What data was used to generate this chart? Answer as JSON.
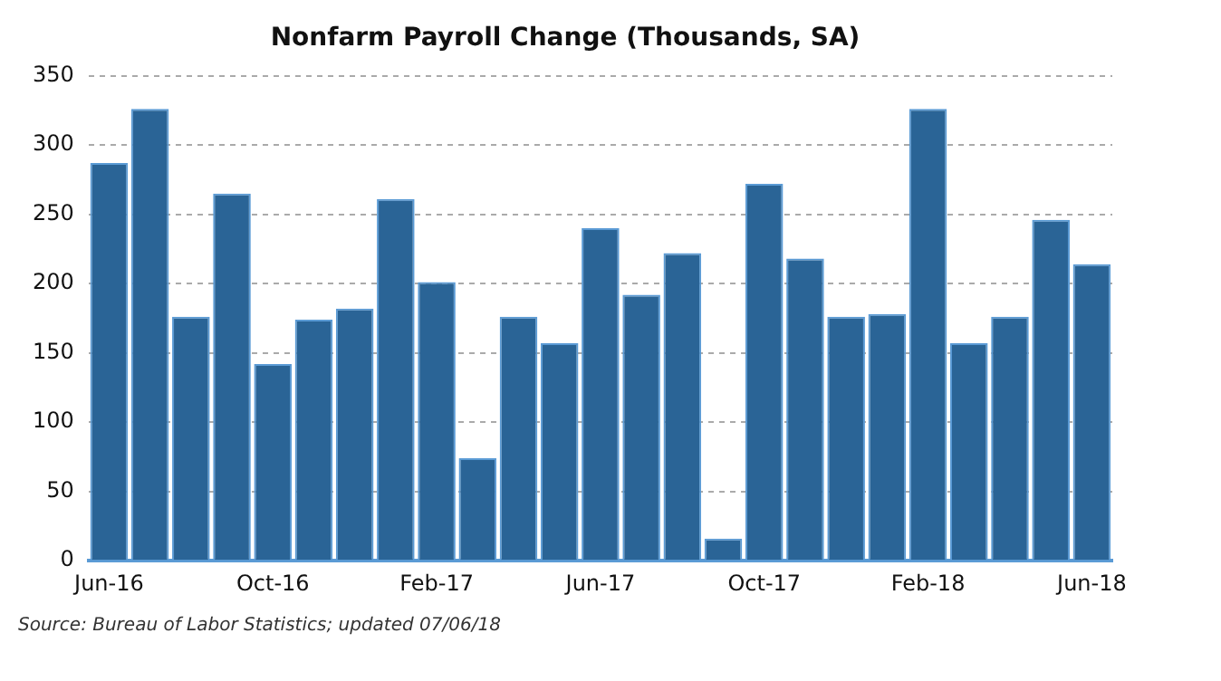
{
  "chart_data": {
    "type": "bar",
    "title": "Nonfarm Payroll Change (Thousands, SA)",
    "categories": [
      "Jun-16",
      null,
      null,
      null,
      "Oct-16",
      null,
      null,
      null,
      "Feb-17",
      null,
      null,
      null,
      "Jun-17",
      null,
      null,
      null,
      "Oct-17",
      null,
      null,
      null,
      "Feb-18",
      null,
      null,
      null,
      "Jun-18"
    ],
    "values": [
      287,
      326,
      176,
      265,
      142,
      174,
      182,
      261,
      201,
      74,
      176,
      157,
      240,
      192,
      222,
      16,
      272,
      218,
      176,
      178,
      326,
      157,
      176,
      246,
      214
    ],
    "color": "#2a6496",
    "ylim": [
      0,
      350
    ],
    "yticks": [
      0,
      50,
      100,
      150,
      200,
      250,
      300,
      350
    ],
    "grid": "y",
    "legend": false,
    "annotations": [
      "Source: Bureau of Labor Statistics; updated 07/06/18"
    ]
  }
}
